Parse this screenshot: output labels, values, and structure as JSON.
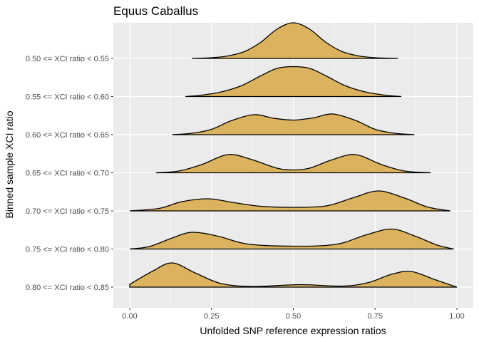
{
  "chart_data": {
    "type": "ridgeline",
    "title": "Equus Caballus",
    "xlabel": "Unfolded SNP reference expression ratios",
    "ylabel": "Binned sample XCI ratio",
    "xlim": [
      0,
      1
    ],
    "x_ticks": [
      0.0,
      0.25,
      0.5,
      0.75,
      1.0
    ],
    "x_tick_labels": [
      "0.00",
      "0.25",
      "0.50",
      "0.75",
      "1.00"
    ],
    "fill_color": "#dbb25e",
    "panel_color": "#ebebeb",
    "grid": true,
    "legend": "none",
    "categories": [
      "0.50 <= XCI ratio < 0.55",
      "0.55 <= XCI ratio < 0.60",
      "0.60 <= XCI ratio < 0.65",
      "0.65 <= XCI ratio < 0.70",
      "0.70 <= XCI ratio < 0.75",
      "0.75 <= XCI ratio < 0.80",
      "0.80 <= XCI ratio < 0.85"
    ],
    "series": [
      {
        "x": [
          0.19,
          0.25,
          0.3,
          0.35,
          0.4,
          0.45,
          0.5,
          0.55,
          0.6,
          0.65,
          0.7,
          0.75,
          0.82
        ],
        "density": [
          0.0,
          0.02,
          0.07,
          0.19,
          0.45,
          0.82,
          1.0,
          0.82,
          0.45,
          0.19,
          0.07,
          0.02,
          0.0
        ]
      },
      {
        "x": [
          0.17,
          0.22,
          0.28,
          0.34,
          0.4,
          0.45,
          0.5,
          0.55,
          0.6,
          0.66,
          0.72,
          0.78,
          0.83
        ],
        "density": [
          0.0,
          0.04,
          0.13,
          0.3,
          0.58,
          0.79,
          0.84,
          0.79,
          0.58,
          0.3,
          0.13,
          0.04,
          0.0
        ]
      },
      {
        "x": [
          0.13,
          0.19,
          0.25,
          0.31,
          0.38,
          0.44,
          0.5,
          0.56,
          0.62,
          0.69,
          0.75,
          0.81,
          0.87
        ],
        "density": [
          0.0,
          0.04,
          0.15,
          0.39,
          0.56,
          0.46,
          0.41,
          0.47,
          0.58,
          0.4,
          0.15,
          0.04,
          0.0
        ]
      },
      {
        "x": [
          0.08,
          0.15,
          0.22,
          0.3,
          0.37,
          0.45,
          0.5,
          0.55,
          0.62,
          0.69,
          0.77,
          0.84,
          0.92
        ],
        "density": [
          0.0,
          0.05,
          0.23,
          0.51,
          0.38,
          0.13,
          0.08,
          0.13,
          0.37,
          0.51,
          0.23,
          0.05,
          0.0
        ]
      },
      {
        "x": [
          0.0,
          0.09,
          0.16,
          0.24,
          0.32,
          0.4,
          0.5,
          0.6,
          0.68,
          0.76,
          0.84,
          0.91,
          0.98
        ],
        "density": [
          0.0,
          0.07,
          0.26,
          0.34,
          0.23,
          0.13,
          0.1,
          0.14,
          0.36,
          0.56,
          0.36,
          0.11,
          0.0
        ]
      },
      {
        "x": [
          0.0,
          0.06,
          0.13,
          0.19,
          0.27,
          0.36,
          0.5,
          0.63,
          0.72,
          0.8,
          0.87,
          0.94,
          0.99
        ],
        "density": [
          0.0,
          0.07,
          0.31,
          0.47,
          0.36,
          0.14,
          0.08,
          0.13,
          0.39,
          0.56,
          0.37,
          0.11,
          0.0
        ]
      },
      {
        "x": [
          0.0,
          0.07,
          0.13,
          0.2,
          0.28,
          0.38,
          0.52,
          0.65,
          0.73,
          0.8,
          0.86,
          0.93,
          1.0
        ],
        "density": [
          0.08,
          0.45,
          0.68,
          0.4,
          0.1,
          0.02,
          0.07,
          0.03,
          0.13,
          0.36,
          0.44,
          0.22,
          0.0
        ]
      }
    ]
  }
}
